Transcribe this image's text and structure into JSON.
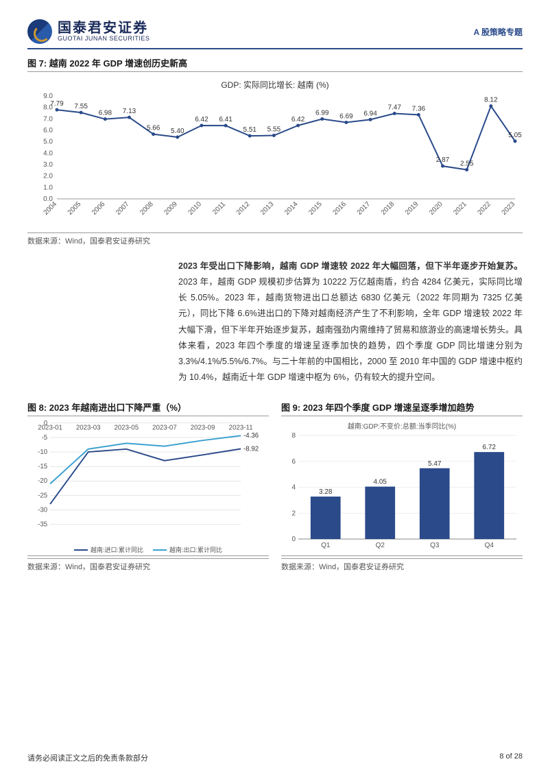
{
  "header": {
    "logo_cn": "国泰君安证券",
    "logo_en": "GUOTAI JUNAN SECURITIES",
    "right": "A 股策略专题"
  },
  "fig7": {
    "title": "图 7: 越南 2022 年 GDP 增速创历史新高",
    "subtitle": "GDP: 实际同比增长: 越南 (%)",
    "type": "line",
    "line_color": "#2a4a8a",
    "background_color": "#ffffff",
    "ylim": [
      0,
      9
    ],
    "ytick_step": 1.0,
    "yticks": [
      "0.0",
      "1.0",
      "2.0",
      "3.0",
      "4.0",
      "5.0",
      "6.0",
      "7.0",
      "8.0",
      "9.0"
    ],
    "categories": [
      "2004",
      "2005",
      "2006",
      "2007",
      "2008",
      "2009",
      "2010",
      "2011",
      "2012",
      "2013",
      "2014",
      "2015",
      "2016",
      "2017",
      "2018",
      "2019",
      "2020",
      "2021",
      "2022",
      "2023"
    ],
    "values": [
      7.79,
      7.55,
      6.98,
      7.13,
      5.66,
      5.4,
      6.42,
      6.41,
      5.51,
      5.55,
      6.42,
      6.99,
      6.69,
      6.94,
      7.47,
      7.36,
      2.87,
      2.55,
      8.12,
      5.05
    ],
    "source": "数据来源：Wind，国泰君安证券研究"
  },
  "body": {
    "lead": "2023 年受出口下降影响，越南 GDP 增速较 2022 年大幅回落，但下半年逐步开始复苏。",
    "text": "2023 年，越南 GDP 规模初步估算为 10222 万亿越南盾，约合 4284 亿美元，实际同比增长 5.05%。2023 年，越南货物进出口总额达 6830 亿美元（2022 年同期为 7325 亿美元），同比下降 6.6%进出口的下降对越南经济产生了不利影响，全年 GDP 增速较 2022 年大幅下滑，但下半年开始逐步复苏，越南强劲内需维持了贸易和旅游业的高速增长势头。具体来看，2023 年四个季度的增速呈逐季加快的趋势，四个季度 GDP 同比增速分别为 3.3%/4.1%/5.5%/6.7%。与二十年前的中国相比，2000 至 2010 年中国的 GDP 增速中枢约为 10.4%，越南近十年 GDP 增速中枢为 6%，仍有较大的提升空间。"
  },
  "fig8": {
    "title": "图 8: 2023 年越南进出口下降严重（%）",
    "type": "line",
    "ylim": [
      -35,
      0
    ],
    "yticks": [
      "0",
      "-5",
      "-10",
      "-15",
      "-20",
      "-25",
      "-30",
      "-35"
    ],
    "categories": [
      "2023-01",
      "2023-03",
      "2023-05",
      "2023-07",
      "2023-09",
      "2023-11"
    ],
    "series": [
      {
        "name": "越南:进口:累计同比",
        "color": "#2a4a8a",
        "values": [
          -28,
          -10,
          -9,
          -13,
          -11,
          -8.92
        ],
        "end_label": "-8.92"
      },
      {
        "name": "越南:出口:累计同比",
        "color": "#3aa0d0",
        "values": [
          -21,
          -9,
          -7,
          -8,
          -6,
          -4.36
        ],
        "end_label": "-4.36"
      }
    ],
    "source": "数据来源：Wind，国泰君安证券研究"
  },
  "fig9": {
    "title": "图 9: 2023 年四个季度 GDP 增速呈逐季增加趋势",
    "subtitle": "越南:GDP:不变价:总额:当季同比(%)",
    "type": "bar",
    "bar_color": "#2a4a8a",
    "ylim": [
      0,
      8
    ],
    "ytick_step": 2,
    "yticks": [
      "0",
      "2",
      "4",
      "6",
      "8"
    ],
    "categories": [
      "Q1",
      "Q2",
      "Q3",
      "Q4"
    ],
    "values": [
      3.28,
      4.05,
      5.47,
      6.72
    ],
    "source": "数据来源：Wind，国泰君安证券研究"
  },
  "footer": {
    "left": "请务必阅读正文之后的免责条款部分",
    "right": "8 of 28"
  }
}
